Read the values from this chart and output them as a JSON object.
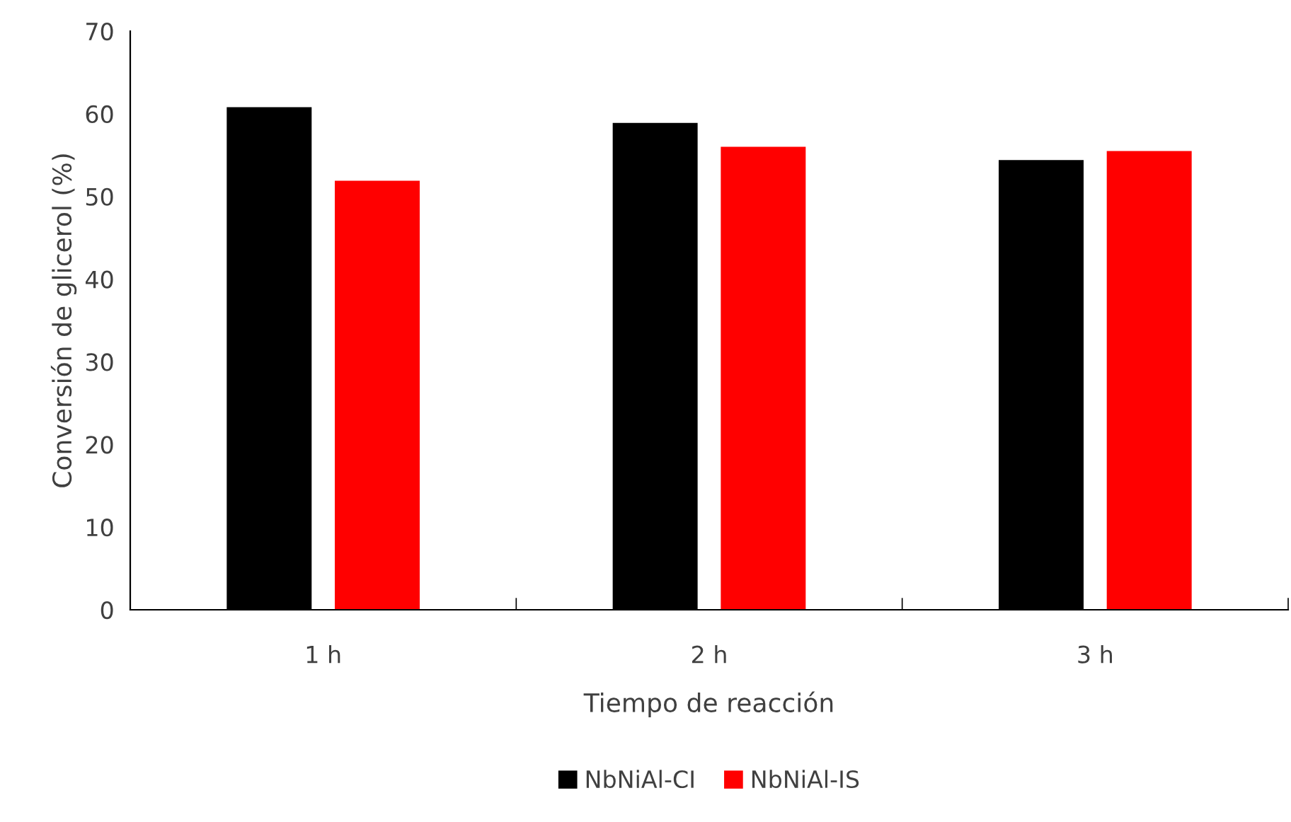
{
  "chart_data": {
    "type": "bar",
    "xlabel": "Tiempo de reacción",
    "ylabel": "Conversión de glicerol (%)",
    "categories": [
      "1 h",
      "2 h",
      "3 h"
    ],
    "series": [
      {
        "name": "NbNiAl-CI",
        "color": "#000000",
        "values": [
          60.8,
          58.9,
          54.4
        ]
      },
      {
        "name": "NbNiAl-IS",
        "color": "#ff0000",
        "values": [
          51.9,
          56.0,
          55.5
        ]
      }
    ],
    "ylim": [
      0,
      70
    ],
    "yticks": [
      0,
      10,
      20,
      30,
      40,
      50,
      60,
      70
    ],
    "grid": false,
    "legend": "bottom"
  }
}
